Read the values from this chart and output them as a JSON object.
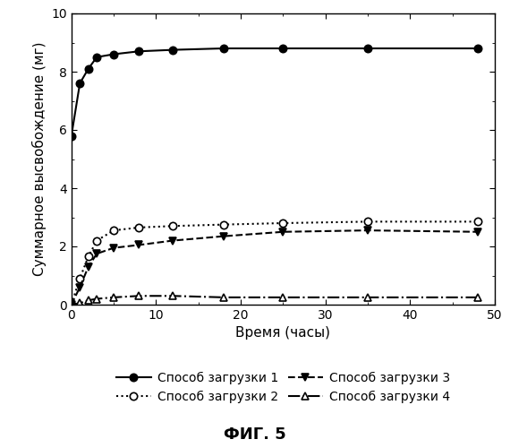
{
  "title": "ФИГ. 5",
  "xlabel": "Время (часы)",
  "ylabel": "Суммарное высвобождение (мг)",
  "xlim": [
    0,
    50
  ],
  "ylim": [
    0,
    10
  ],
  "xticks": [
    0,
    10,
    20,
    30,
    40,
    50
  ],
  "yticks": [
    0,
    2,
    4,
    6,
    8,
    10
  ],
  "series1": {
    "label": "Способ загрузки 1",
    "x": [
      0,
      1,
      2,
      3,
      5,
      8,
      12,
      18,
      25,
      35,
      48
    ],
    "y": [
      5.8,
      7.6,
      8.1,
      8.5,
      8.6,
      8.7,
      8.75,
      8.8,
      8.8,
      8.8,
      8.8
    ],
    "linestyle": "-",
    "marker": "o",
    "markerfacecolor": "black",
    "color": "black"
  },
  "series2": {
    "label": "Способ загрузки 2",
    "x": [
      0,
      1,
      2,
      3,
      5,
      8,
      12,
      18,
      25,
      35,
      48
    ],
    "y": [
      0.0,
      0.9,
      1.65,
      2.2,
      2.55,
      2.65,
      2.7,
      2.75,
      2.8,
      2.85,
      2.85
    ],
    "linestyle": ":",
    "marker": "o",
    "markerfacecolor": "white",
    "color": "black"
  },
  "series3": {
    "label": "Способ загрузки 3",
    "x": [
      0,
      1,
      2,
      3,
      5,
      8,
      12,
      18,
      25,
      35,
      48
    ],
    "y": [
      0.0,
      0.6,
      1.3,
      1.75,
      1.95,
      2.05,
      2.2,
      2.35,
      2.5,
      2.55,
      2.5
    ],
    "linestyle": "--",
    "marker": "v",
    "markerfacecolor": "black",
    "color": "black"
  },
  "series4": {
    "label": "Способ загрузки 4",
    "x": [
      0,
      1,
      2,
      3,
      5,
      8,
      12,
      18,
      25,
      35,
      48
    ],
    "y": [
      0.0,
      0.05,
      0.15,
      0.2,
      0.25,
      0.3,
      0.3,
      0.25,
      0.25,
      0.25,
      0.25
    ],
    "linestyle": "-.",
    "marker": "^",
    "markerfacecolor": "white",
    "color": "black"
  },
  "background_color": "white",
  "font_color": "black",
  "markersize": 6,
  "linewidth": 1.5,
  "legend_fontsize": 10,
  "axis_fontsize": 11,
  "tick_fontsize": 10,
  "title_fontsize": 13
}
